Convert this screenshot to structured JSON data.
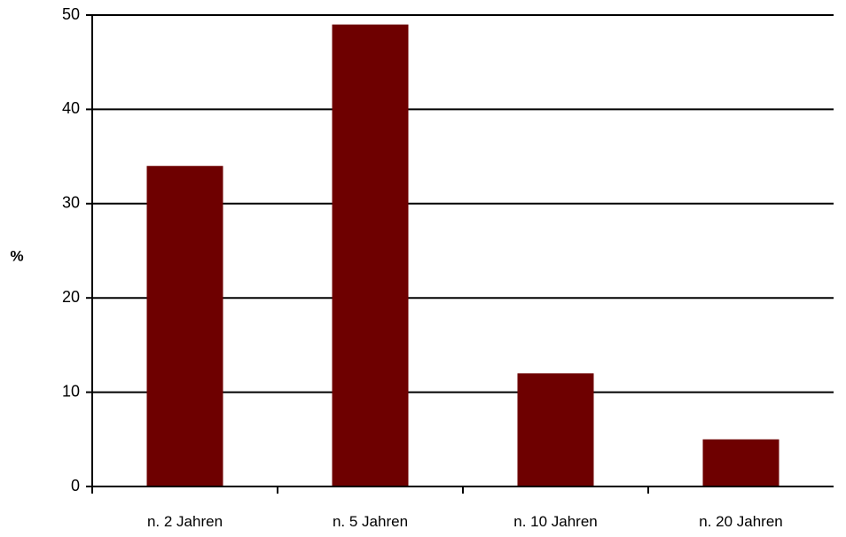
{
  "chart_data": {
    "type": "bar",
    "title": "",
    "xlabel": "",
    "ylabel": "%",
    "categories": [
      "n. 2 Jahren",
      "n. 5 Jahren",
      "n. 10 Jahren",
      "n. 20 Jahren"
    ],
    "values": [
      34,
      49,
      12,
      5
    ],
    "ylim": [
      0,
      50
    ],
    "yticks": [
      0,
      10,
      20,
      30,
      40,
      50
    ],
    "grid": true,
    "legend": "none",
    "bar_color": "#6e0000",
    "grid_color": "#000000"
  }
}
